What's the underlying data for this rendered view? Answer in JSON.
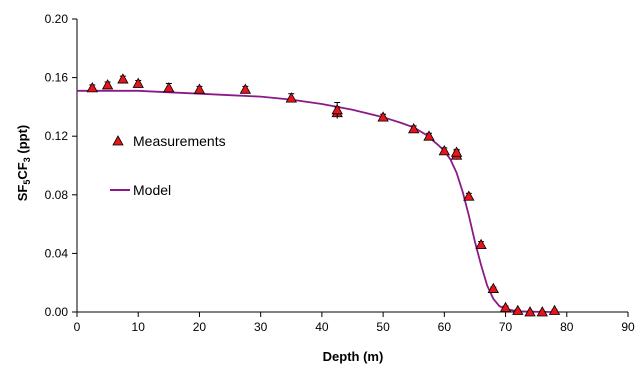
{
  "chart_data": {
    "type": "scatter",
    "xlabel": "Depth (m)",
    "ylabel": {
      "main": "SF",
      "sub1": "5",
      "mid": "CF",
      "sub2": "3",
      "unit": " (ppt)"
    },
    "xlim": [
      0,
      90
    ],
    "ylim": [
      0,
      0.2
    ],
    "xticks": [
      0,
      10,
      20,
      30,
      40,
      50,
      60,
      70,
      80,
      90
    ],
    "yticks": [
      "0.00",
      "0.04",
      "0.08",
      "0.12",
      "0.16",
      "0.20"
    ],
    "grid": false,
    "legend_position": "left",
    "series": [
      {
        "name": "Measurements",
        "kind": "markers",
        "marker": "triangle",
        "color": "#e8141b",
        "points": [
          {
            "x": 2.5,
            "y": 0.153,
            "err": 0.002
          },
          {
            "x": 5.0,
            "y": 0.155,
            "err": 0.002
          },
          {
            "x": 7.5,
            "y": 0.159,
            "err": 0.002
          },
          {
            "x": 10.0,
            "y": 0.156,
            "err": 0.002
          },
          {
            "x": 15.0,
            "y": 0.153,
            "err": 0.003
          },
          {
            "x": 20.0,
            "y": 0.152,
            "err": 0.002
          },
          {
            "x": 27.5,
            "y": 0.152,
            "err": 0.002
          },
          {
            "x": 35.0,
            "y": 0.146,
            "err": 0.003
          },
          {
            "x": 42.5,
            "y": 0.136,
            "err": 0.004
          },
          {
            "x": 42.5,
            "y": 0.138,
            "err": 0.005
          },
          {
            "x": 50.0,
            "y": 0.133,
            "err": 0.002
          },
          {
            "x": 55.0,
            "y": 0.125,
            "err": 0.002
          },
          {
            "x": 57.5,
            "y": 0.12,
            "err": 0.002
          },
          {
            "x": 60.0,
            "y": 0.11,
            "err": 0.002
          },
          {
            "x": 62.0,
            "y": 0.107,
            "err": 0.003
          },
          {
            "x": 62.0,
            "y": 0.109,
            "err": 0.002
          },
          {
            "x": 64.0,
            "y": 0.079,
            "err": 0.002
          },
          {
            "x": 66.0,
            "y": 0.046,
            "err": 0.002
          },
          {
            "x": 68.0,
            "y": 0.016,
            "err": 0.001
          },
          {
            "x": 70.0,
            "y": 0.003,
            "err": 0.001
          },
          {
            "x": 72.0,
            "y": 0.001,
            "err": 0.0005
          },
          {
            "x": 74.0,
            "y": 0.0,
            "err": 0.0005
          },
          {
            "x": 76.0,
            "y": 0.0,
            "err": 0.0005
          },
          {
            "x": 78.0,
            "y": 0.001,
            "err": 0.0005
          }
        ]
      },
      {
        "name": "Model",
        "kind": "line",
        "color": "#8b1a89",
        "x": [
          0,
          5,
          10,
          15,
          20,
          25,
          30,
          35,
          40,
          45,
          50,
          53,
          55,
          57,
          59,
          60,
          61,
          62,
          63,
          64,
          65,
          66,
          67,
          68,
          69,
          70,
          72,
          74,
          76,
          78
        ],
        "y": [
          0.151,
          0.151,
          0.151,
          0.15,
          0.149,
          0.148,
          0.147,
          0.145,
          0.142,
          0.138,
          0.133,
          0.129,
          0.126,
          0.121,
          0.114,
          0.11,
          0.104,
          0.095,
          0.082,
          0.066,
          0.048,
          0.032,
          0.018,
          0.009,
          0.004,
          0.002,
          0.0005,
          0.0002,
          0.0001,
          0.0
        ]
      }
    ]
  }
}
